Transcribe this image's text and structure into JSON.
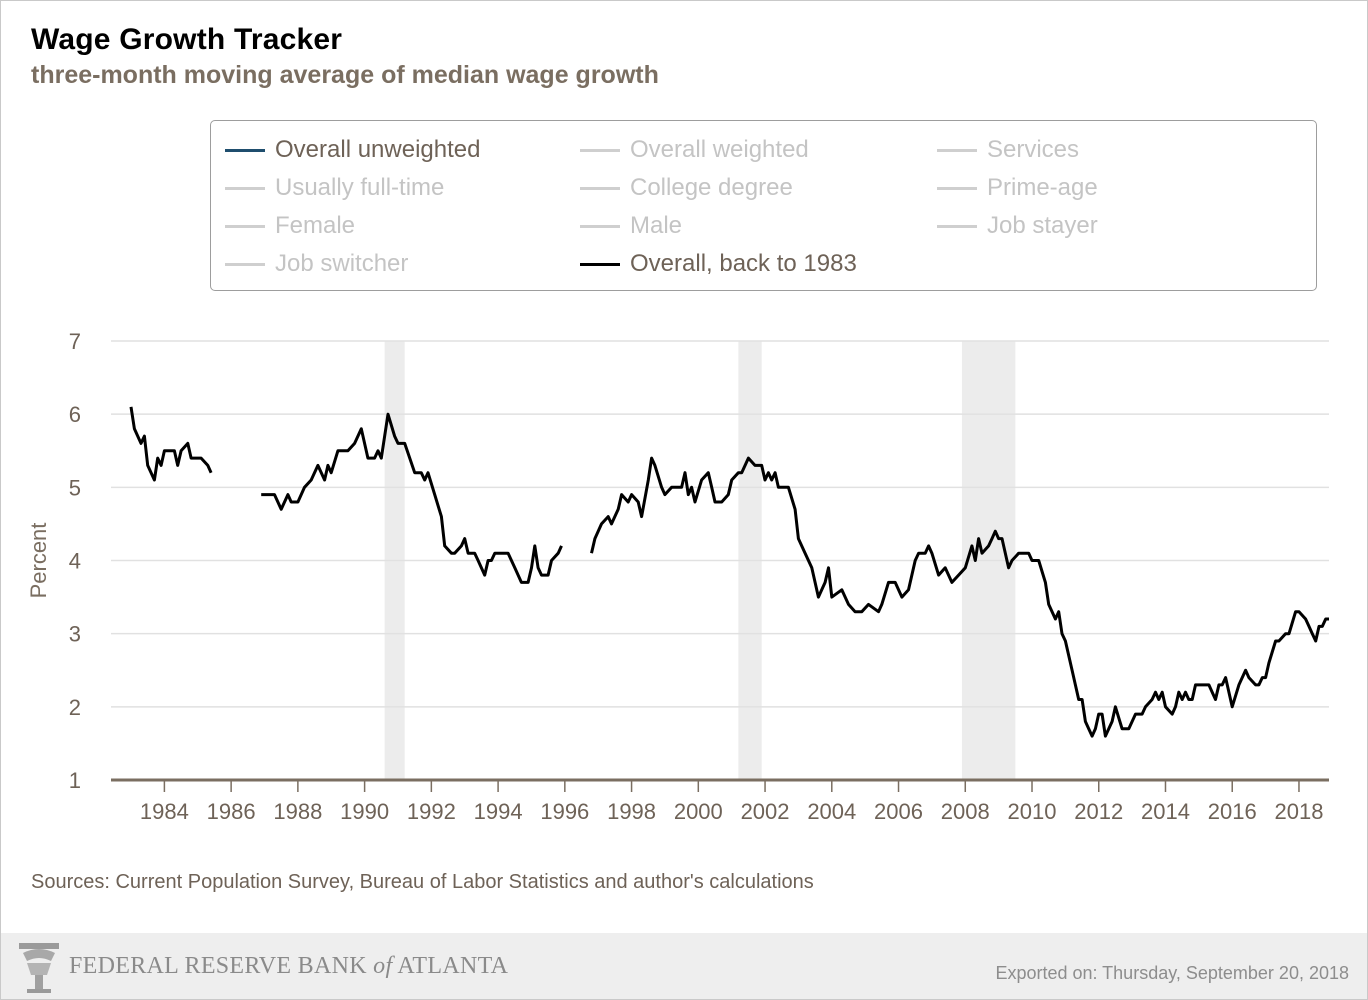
{
  "header": {
    "title": "Wage Growth Tracker",
    "subtitle": "three-month moving average of median wage growth"
  },
  "legend": [
    {
      "label": "Overall unweighted",
      "active": true,
      "color": "#1f4e6e"
    },
    {
      "label": "Overall weighted",
      "active": false,
      "color": "#cfcfcf"
    },
    {
      "label": "Services",
      "active": false,
      "color": "#cfcfcf"
    },
    {
      "label": "Usually full-time",
      "active": false,
      "color": "#cfcfcf"
    },
    {
      "label": "College degree",
      "active": false,
      "color": "#cfcfcf"
    },
    {
      "label": "Prime-age",
      "active": false,
      "color": "#cfcfcf"
    },
    {
      "label": "Female",
      "active": false,
      "color": "#cfcfcf"
    },
    {
      "label": "Male",
      "active": false,
      "color": "#cfcfcf"
    },
    {
      "label": "Job stayer",
      "active": false,
      "color": "#cfcfcf"
    },
    {
      "label": "Job switcher",
      "active": false,
      "color": "#cfcfcf"
    },
    {
      "label": "Overall, back to 1983",
      "active": true,
      "color": "#000000"
    }
  ],
  "chart_data": {
    "type": "line",
    "title": "Wage Growth Tracker",
    "subtitle": "three-month moving average of median wage growth",
    "xlabel": "",
    "ylabel": "Percent",
    "xlim": [
      1982.4,
      2018.9
    ],
    "ylim": [
      1,
      7
    ],
    "x_ticks": [
      1984,
      1986,
      1988,
      1990,
      1992,
      1994,
      1996,
      1998,
      2000,
      2002,
      2004,
      2006,
      2008,
      2010,
      2012,
      2014,
      2016,
      2018
    ],
    "y_ticks": [
      1,
      2,
      3,
      4,
      5,
      6,
      7
    ],
    "grid": true,
    "legend_position": "top",
    "recessions": [
      [
        1990.6,
        1991.2
      ],
      [
        2001.2,
        2001.9
      ],
      [
        2007.9,
        2009.5
      ]
    ],
    "series": [
      {
        "name": "Overall, back to 1983",
        "color": "#000000",
        "segments": [
          [
            [
              1983.0,
              6.1
            ],
            [
              1983.1,
              5.8
            ],
            [
              1983.3,
              5.6
            ],
            [
              1983.4,
              5.7
            ],
            [
              1983.5,
              5.3
            ],
            [
              1983.7,
              5.1
            ],
            [
              1983.8,
              5.4
            ],
            [
              1983.9,
              5.3
            ],
            [
              1984.0,
              5.5
            ],
            [
              1984.3,
              5.5
            ],
            [
              1984.4,
              5.3
            ],
            [
              1984.5,
              5.5
            ],
            [
              1984.7,
              5.6
            ],
            [
              1984.8,
              5.4
            ],
            [
              1985.1,
              5.4
            ],
            [
              1985.3,
              5.3
            ],
            [
              1985.4,
              5.2
            ]
          ],
          [
            [
              1986.9,
              4.9
            ],
            [
              1987.3,
              4.9
            ],
            [
              1987.5,
              4.7
            ],
            [
              1987.7,
              4.9
            ],
            [
              1987.8,
              4.8
            ],
            [
              1988.0,
              4.8
            ],
            [
              1988.2,
              5.0
            ],
            [
              1988.4,
              5.1
            ],
            [
              1988.6,
              5.3
            ],
            [
              1988.8,
              5.1
            ],
            [
              1988.9,
              5.3
            ],
            [
              1989.0,
              5.2
            ],
            [
              1989.2,
              5.5
            ],
            [
              1989.5,
              5.5
            ],
            [
              1989.7,
              5.6
            ],
            [
              1989.9,
              5.8
            ],
            [
              1990.1,
              5.4
            ],
            [
              1990.3,
              5.4
            ],
            [
              1990.4,
              5.5
            ],
            [
              1990.5,
              5.4
            ],
            [
              1990.7,
              6.0
            ],
            [
              1990.9,
              5.7
            ],
            [
              1991.0,
              5.6
            ],
            [
              1991.2,
              5.6
            ],
            [
              1991.5,
              5.2
            ],
            [
              1991.7,
              5.2
            ],
            [
              1991.8,
              5.1
            ],
            [
              1991.9,
              5.2
            ],
            [
              1992.1,
              4.9
            ],
            [
              1992.3,
              4.6
            ],
            [
              1992.4,
              4.2
            ],
            [
              1992.6,
              4.1
            ],
            [
              1992.7,
              4.1
            ],
            [
              1992.9,
              4.2
            ],
            [
              1993.0,
              4.3
            ],
            [
              1993.1,
              4.1
            ],
            [
              1993.3,
              4.1
            ],
            [
              1993.4,
              4.0
            ],
            [
              1993.6,
              3.8
            ],
            [
              1993.7,
              4.0
            ],
            [
              1993.8,
              4.0
            ],
            [
              1993.9,
              4.1
            ],
            [
              1994.3,
              4.1
            ],
            [
              1994.5,
              3.9
            ],
            [
              1994.7,
              3.7
            ],
            [
              1994.9,
              3.7
            ],
            [
              1995.0,
              3.9
            ],
            [
              1995.1,
              4.2
            ],
            [
              1995.2,
              3.9
            ],
            [
              1995.3,
              3.8
            ],
            [
              1995.5,
              3.8
            ],
            [
              1995.6,
              4.0
            ],
            [
              1995.8,
              4.1
            ],
            [
              1995.9,
              4.2
            ]
          ],
          [
            [
              1996.8,
              4.1
            ],
            [
              1996.9,
              4.3
            ],
            [
              1997.1,
              4.5
            ],
            [
              1997.3,
              4.6
            ],
            [
              1997.4,
              4.5
            ],
            [
              1997.6,
              4.7
            ],
            [
              1997.7,
              4.9
            ],
            [
              1997.9,
              4.8
            ],
            [
              1998.0,
              4.9
            ],
            [
              1998.2,
              4.8
            ],
            [
              1998.3,
              4.6
            ],
            [
              1998.5,
              5.1
            ],
            [
              1998.6,
              5.4
            ],
            [
              1998.7,
              5.3
            ],
            [
              1998.9,
              5.0
            ],
            [
              1999.0,
              4.9
            ],
            [
              1999.2,
              5.0
            ],
            [
              1999.5,
              5.0
            ],
            [
              1999.6,
              5.2
            ],
            [
              1999.7,
              4.9
            ],
            [
              1999.8,
              5.0
            ],
            [
              1999.9,
              4.8
            ],
            [
              2000.1,
              5.1
            ],
            [
              2000.3,
              5.2
            ],
            [
              2000.4,
              5.0
            ],
            [
              2000.5,
              4.8
            ],
            [
              2000.7,
              4.8
            ],
            [
              2000.9,
              4.9
            ],
            [
              2001.0,
              5.1
            ],
            [
              2001.2,
              5.2
            ],
            [
              2001.3,
              5.2
            ],
            [
              2001.5,
              5.4
            ],
            [
              2001.7,
              5.3
            ],
            [
              2001.9,
              5.3
            ],
            [
              2002.0,
              5.1
            ],
            [
              2002.1,
              5.2
            ],
            [
              2002.2,
              5.1
            ],
            [
              2002.3,
              5.2
            ],
            [
              2002.4,
              5.0
            ],
            [
              2002.7,
              5.0
            ],
            [
              2002.9,
              4.7
            ],
            [
              2003.0,
              4.3
            ],
            [
              2003.2,
              4.1
            ],
            [
              2003.4,
              3.9
            ],
            [
              2003.6,
              3.5
            ],
            [
              2003.8,
              3.7
            ],
            [
              2003.9,
              3.9
            ],
            [
              2004.0,
              3.5
            ],
            [
              2004.3,
              3.6
            ],
            [
              2004.5,
              3.4
            ],
            [
              2004.7,
              3.3
            ],
            [
              2004.9,
              3.3
            ],
            [
              2005.1,
              3.4
            ],
            [
              2005.4,
              3.3
            ],
            [
              2005.5,
              3.4
            ],
            [
              2005.7,
              3.7
            ],
            [
              2005.9,
              3.7
            ],
            [
              2006.1,
              3.5
            ],
            [
              2006.3,
              3.6
            ],
            [
              2006.5,
              4.0
            ],
            [
              2006.6,
              4.1
            ],
            [
              2006.8,
              4.1
            ],
            [
              2006.9,
              4.2
            ],
            [
              2007.0,
              4.1
            ],
            [
              2007.2,
              3.8
            ],
            [
              2007.4,
              3.9
            ],
            [
              2007.6,
              3.7
            ],
            [
              2007.8,
              3.8
            ],
            [
              2008.0,
              3.9
            ],
            [
              2008.2,
              4.2
            ],
            [
              2008.3,
              4.0
            ],
            [
              2008.4,
              4.3
            ],
            [
              2008.5,
              4.1
            ],
            [
              2008.7,
              4.2
            ],
            [
              2008.8,
              4.3
            ],
            [
              2008.9,
              4.4
            ],
            [
              2009.0,
              4.3
            ],
            [
              2009.1,
              4.3
            ],
            [
              2009.3,
              3.9
            ],
            [
              2009.4,
              4.0
            ],
            [
              2009.6,
              4.1
            ],
            [
              2009.9,
              4.1
            ],
            [
              2010.0,
              4.0
            ],
            [
              2010.2,
              4.0
            ],
            [
              2010.4,
              3.7
            ],
            [
              2010.5,
              3.4
            ],
            [
              2010.7,
              3.2
            ],
            [
              2010.8,
              3.3
            ],
            [
              2010.9,
              3.0
            ],
            [
              2011.0,
              2.9
            ],
            [
              2011.2,
              2.5
            ],
            [
              2011.3,
              2.3
            ],
            [
              2011.4,
              2.1
            ],
            [
              2011.5,
              2.1
            ],
            [
              2011.6,
              1.8
            ],
            [
              2011.7,
              1.7
            ],
            [
              2011.8,
              1.6
            ],
            [
              2011.9,
              1.7
            ],
            [
              2012.0,
              1.9
            ],
            [
              2012.1,
              1.9
            ],
            [
              2012.2,
              1.6
            ],
            [
              2012.4,
              1.8
            ],
            [
              2012.5,
              2.0
            ],
            [
              2012.7,
              1.7
            ],
            [
              2012.9,
              1.7
            ],
            [
              2013.1,
              1.9
            ],
            [
              2013.3,
              1.9
            ],
            [
              2013.4,
              2.0
            ],
            [
              2013.6,
              2.1
            ],
            [
              2013.7,
              2.2
            ],
            [
              2013.8,
              2.1
            ],
            [
              2013.9,
              2.2
            ],
            [
              2014.0,
              2.0
            ],
            [
              2014.2,
              1.9
            ],
            [
              2014.3,
              2.0
            ],
            [
              2014.4,
              2.2
            ],
            [
              2014.5,
              2.1
            ],
            [
              2014.6,
              2.2
            ],
            [
              2014.7,
              2.1
            ],
            [
              2014.8,
              2.1
            ],
            [
              2014.9,
              2.3
            ],
            [
              2015.0,
              2.3
            ],
            [
              2015.3,
              2.3
            ],
            [
              2015.4,
              2.2
            ],
            [
              2015.5,
              2.1
            ],
            [
              2015.6,
              2.3
            ],
            [
              2015.7,
              2.3
            ],
            [
              2015.8,
              2.4
            ],
            [
              2015.9,
              2.2
            ],
            [
              2016.0,
              2.0
            ],
            [
              2016.2,
              2.3
            ],
            [
              2016.4,
              2.5
            ],
            [
              2016.5,
              2.4
            ],
            [
              2016.7,
              2.3
            ],
            [
              2016.8,
              2.3
            ],
            [
              2016.9,
              2.4
            ],
            [
              2017.0,
              2.4
            ],
            [
              2017.1,
              2.6
            ],
            [
              2017.3,
              2.9
            ],
            [
              2017.4,
              2.9
            ],
            [
              2017.6,
              3.0
            ],
            [
              2017.7,
              3.0
            ],
            [
              2017.9,
              3.3
            ],
            [
              2018.0,
              3.3
            ],
            [
              2018.2,
              3.2
            ],
            [
              2018.3,
              3.1
            ],
            [
              2018.4,
              3.0
            ],
            [
              2018.5,
              2.9
            ],
            [
              2018.6,
              3.1
            ],
            [
              2018.7,
              3.1
            ],
            [
              2018.8,
              3.2
            ],
            [
              2018.9,
              3.2
            ]
          ]
        ]
      }
    ]
  },
  "sources": "Sources: Current Population Survey, Bureau of Labor Statistics and author's calculations",
  "footer": {
    "logo_text_pre": "FEDERAL RESERVE BANK ",
    "logo_text_of": "of",
    "logo_text_post": " ATLANTA",
    "exported": "Exported on: Thursday, September 20, 2018"
  },
  "colors": {
    "axis": "#7a6e61",
    "grid": "#e1e1e1",
    "recession": "#ececec",
    "line": "#000000"
  }
}
